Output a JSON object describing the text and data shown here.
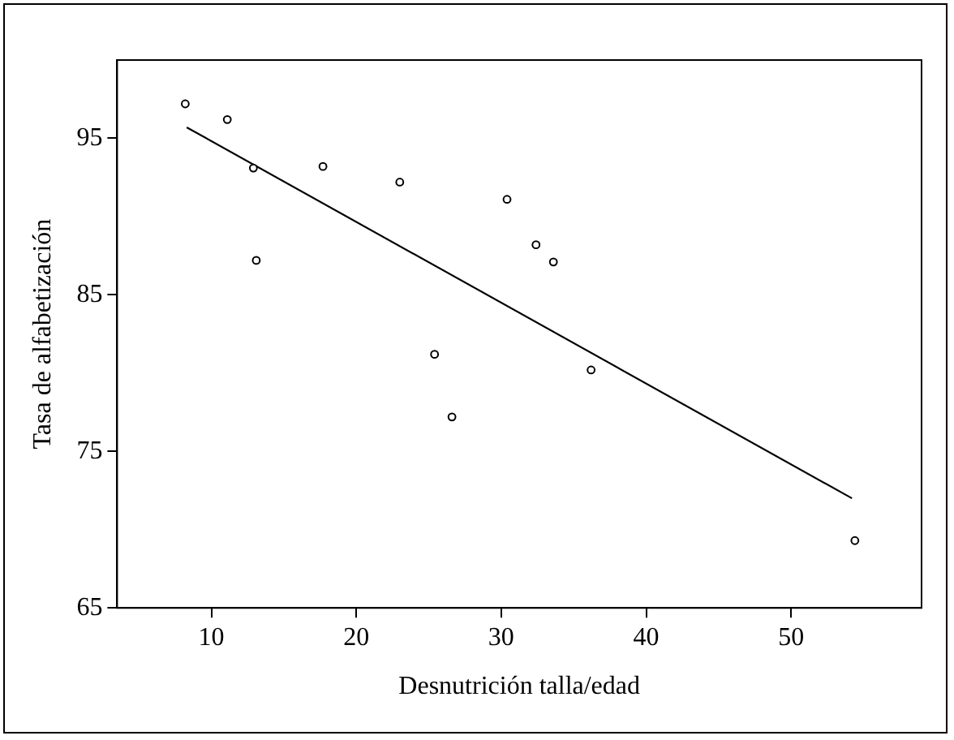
{
  "chart_data": {
    "type": "scatter",
    "xlabel": "Desnutrición talla/edad",
    "ylabel": "Tasa de alfabetización",
    "xlim": [
      3.5,
      59
    ],
    "xticks": [
      10,
      20,
      30,
      40,
      50
    ],
    "ylim": [
      65,
      100
    ],
    "yticks": [
      65,
      75,
      85,
      95
    ],
    "grid": false,
    "legend": false,
    "marker": "circle",
    "series": [
      {
        "color": "#000000",
        "x": [
          8.2,
          11.1,
          12.9,
          13.1,
          17.7,
          23.0,
          25.4,
          26.6,
          30.4,
          32.4,
          33.6,
          36.2,
          54.4
        ],
        "values": [
          97.2,
          96.2,
          93.1,
          87.2,
          93.2,
          92.2,
          81.2,
          77.2,
          91.1,
          88.2,
          87.1,
          80.2,
          69.3
        ]
      },
      {
        "type": "line",
        "color": "#000000",
        "marker": "none",
        "x": [
          8.3,
          54.2
        ],
        "values": [
          95.7,
          72.0
        ]
      }
    ]
  }
}
